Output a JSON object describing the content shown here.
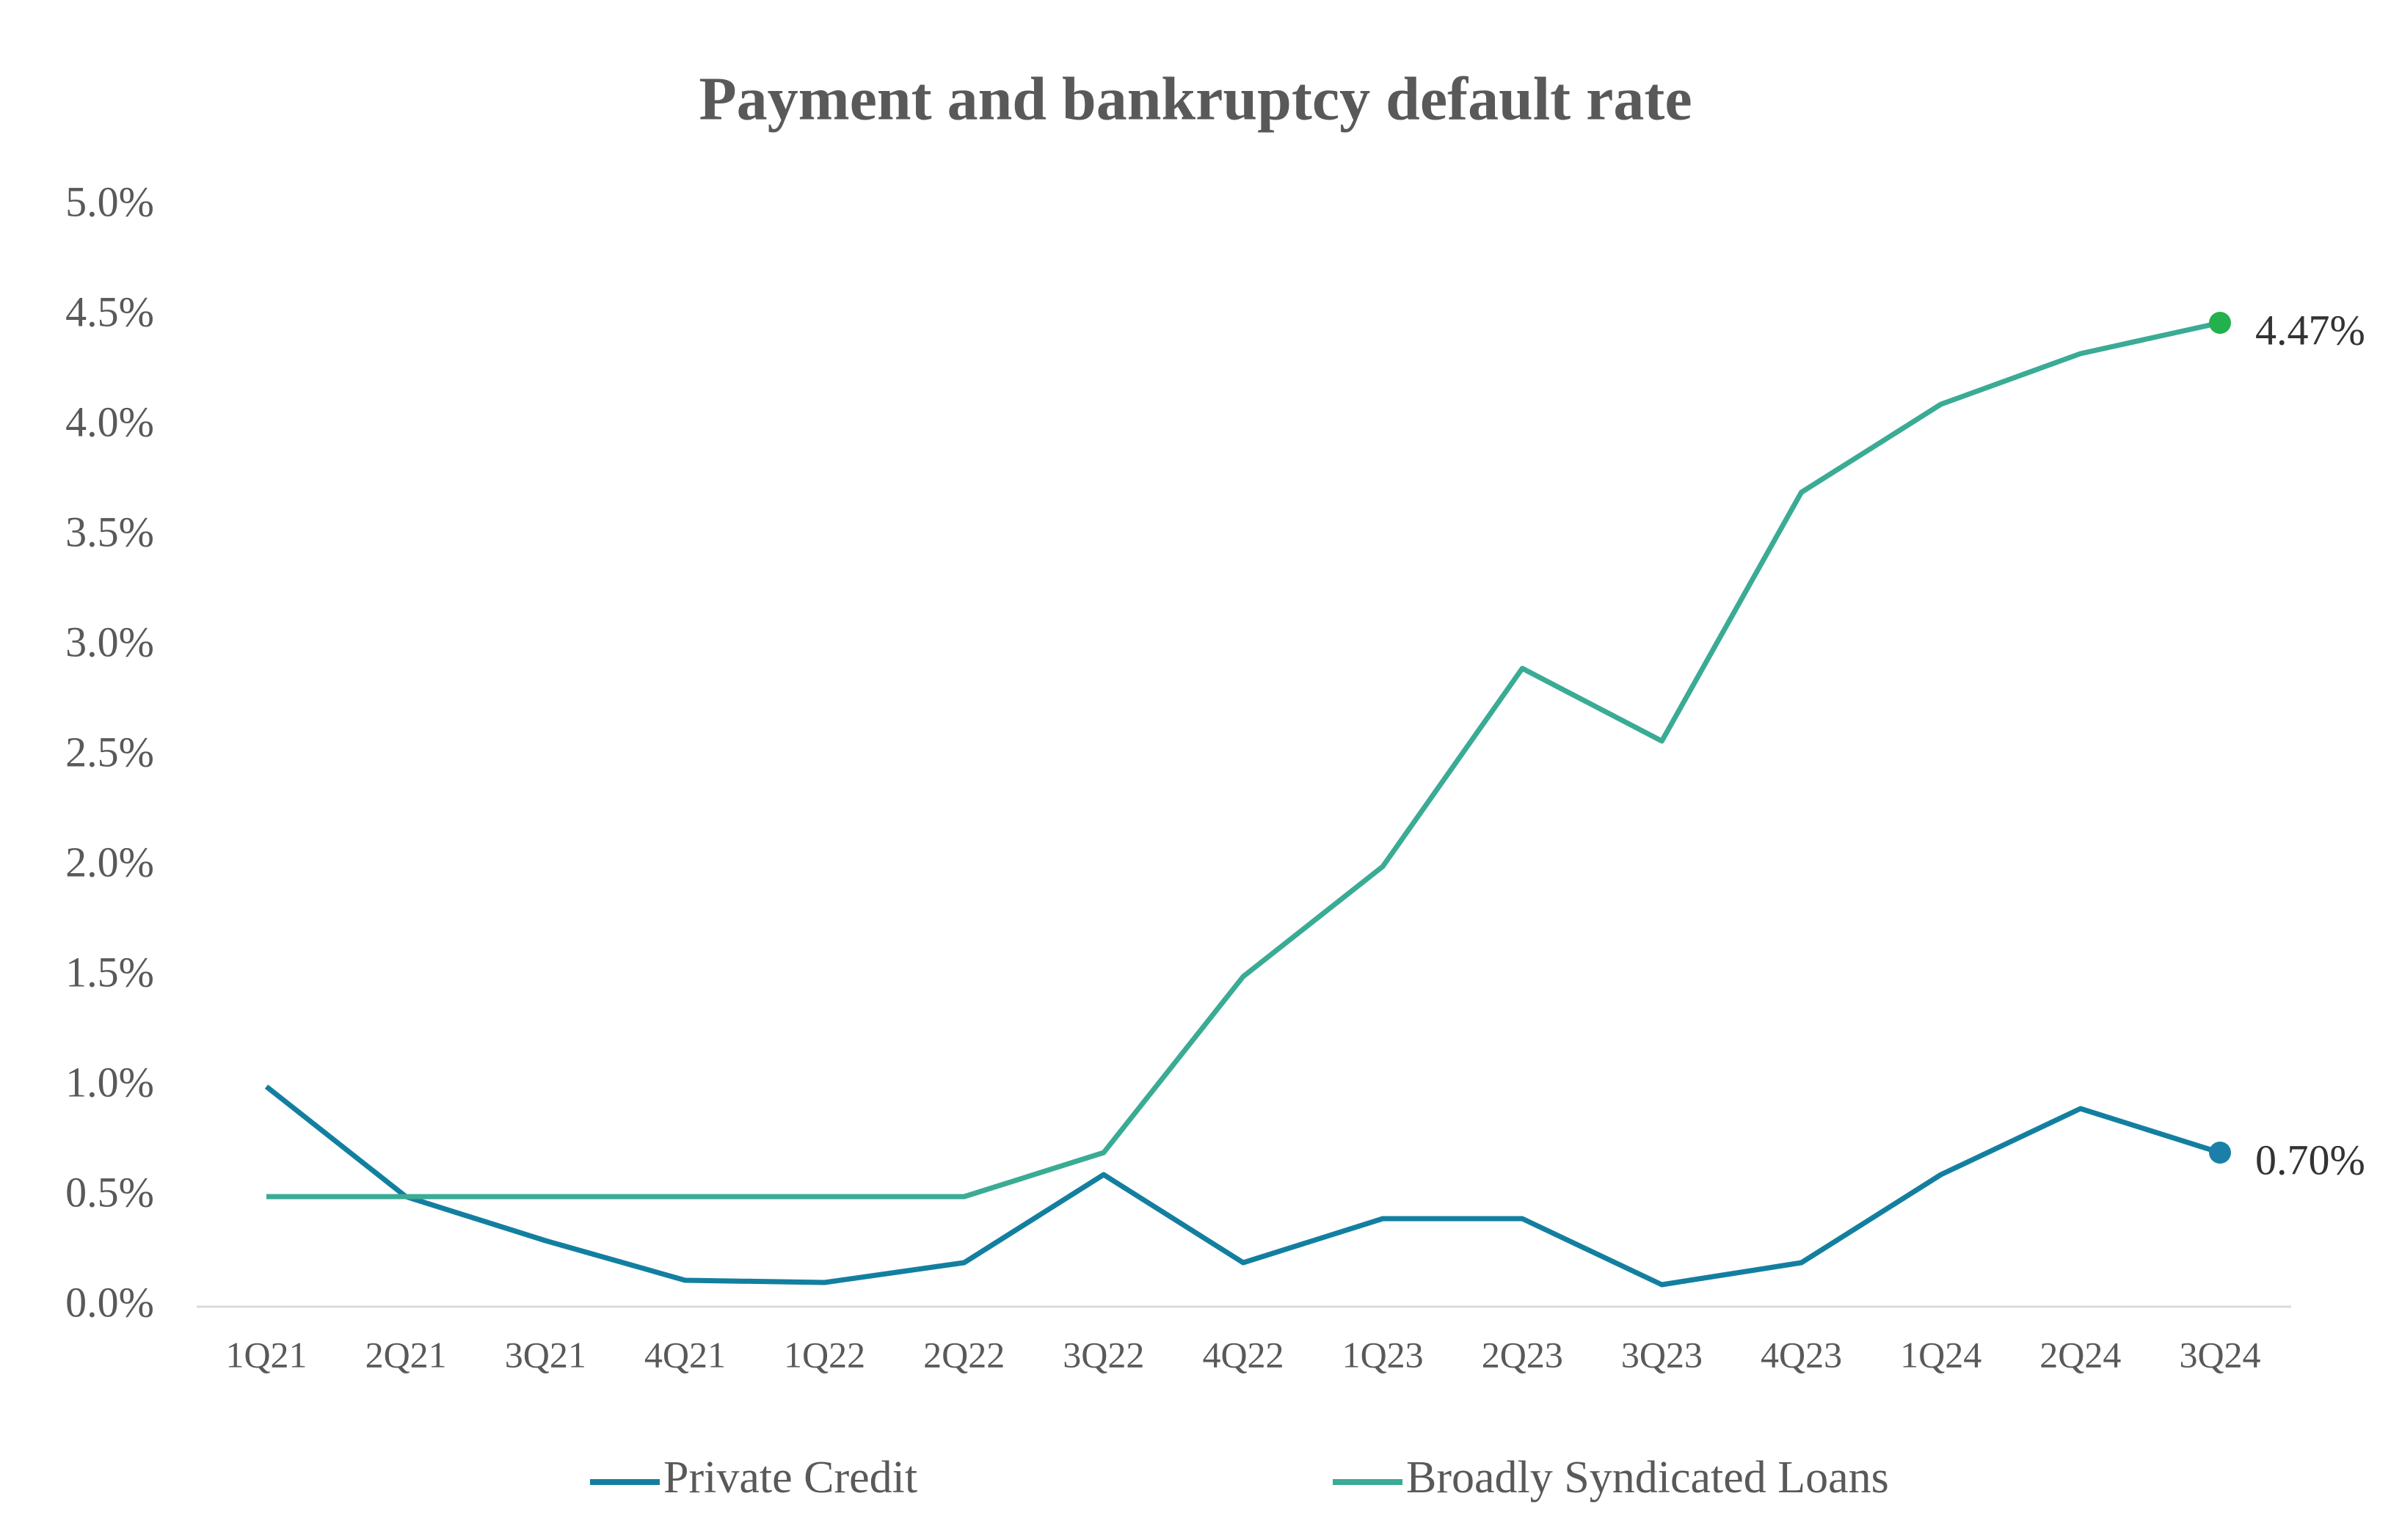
{
  "chart_data": {
    "type": "line",
    "title": "Payment and bankruptcy default rate",
    "categories": [
      "1Q21",
      "2Q21",
      "3Q21",
      "4Q21",
      "1Q22",
      "2Q22",
      "3Q22",
      "4Q22",
      "1Q23",
      "2Q23",
      "3Q23",
      "4Q23",
      "1Q24",
      "2Q24",
      "3Q24"
    ],
    "series": [
      {
        "name": "Private Credit",
        "color": "#137fa0",
        "end_marker_color": "#1a80a8",
        "values": [
          1.0,
          0.5,
          0.3,
          0.12,
          0.11,
          0.2,
          0.6,
          0.2,
          0.4,
          0.4,
          0.1,
          0.2,
          0.6,
          0.9,
          0.7
        ],
        "value_labels": [
          null,
          null,
          null,
          null,
          null,
          null,
          null,
          null,
          null,
          null,
          null,
          null,
          null,
          null,
          "0.70%"
        ]
      },
      {
        "name": "Broadly Syndicated Loans",
        "color": "#3aab94",
        "end_marker_color": "#22b14c",
        "values": [
          0.5,
          0.5,
          0.5,
          0.5,
          0.5,
          0.5,
          0.7,
          1.5,
          2.0,
          2.9,
          2.57,
          3.7,
          4.1,
          4.33,
          4.47
        ],
        "value_labels": [
          null,
          null,
          null,
          null,
          null,
          null,
          null,
          null,
          null,
          null,
          null,
          null,
          null,
          null,
          "4.47%"
        ]
      }
    ],
    "ylim": [
      0,
      5
    ],
    "yticks": [
      {
        "value": 0,
        "label": "0.0%"
      },
      {
        "value": 0.5,
        "label": "0.5%"
      },
      {
        "value": 1,
        "label": "1.0%"
      },
      {
        "value": 1.5,
        "label": "1.5%"
      },
      {
        "value": 2,
        "label": "2.0%"
      },
      {
        "value": 2.5,
        "label": "2.5%"
      },
      {
        "value": 3,
        "label": "3.0%"
      },
      {
        "value": 3.5,
        "label": "3.5%"
      },
      {
        "value": 4,
        "label": "4.0%"
      },
      {
        "value": 4.5,
        "label": "4.5%"
      },
      {
        "value": 5,
        "label": "5.0%"
      }
    ],
    "grid": false,
    "legend": "bottom"
  }
}
